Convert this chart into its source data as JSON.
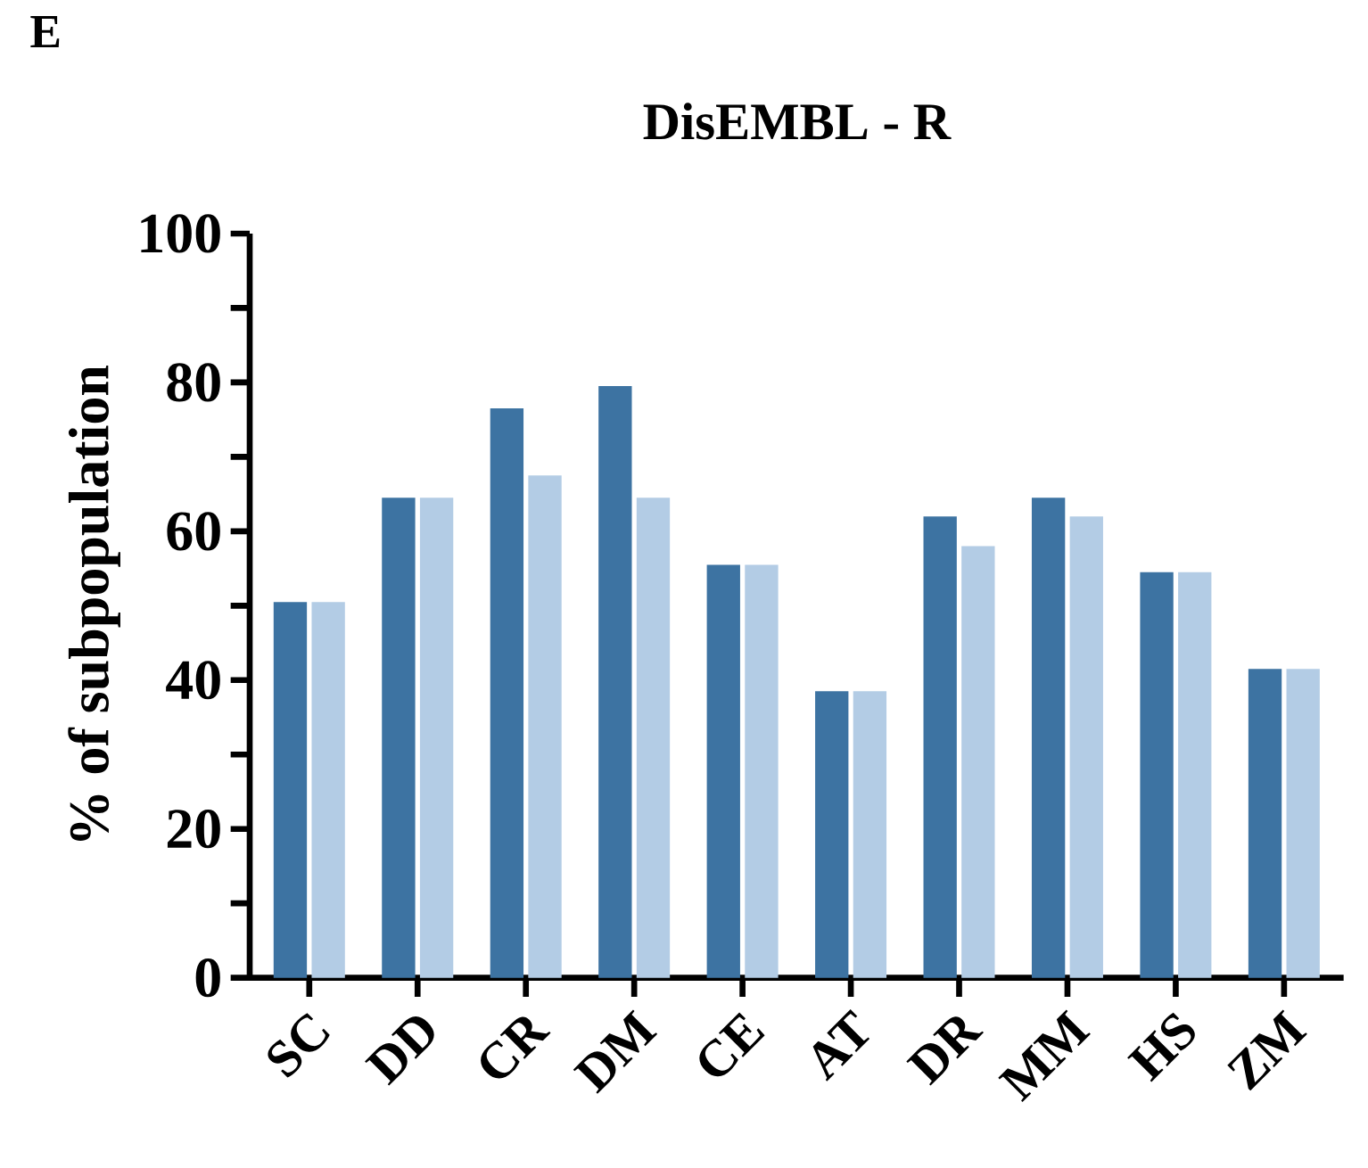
{
  "chart_data": {
    "type": "bar",
    "title": "DisEMBL - R",
    "ylabel": "% of subpopulation",
    "annotations": [
      "E"
    ],
    "categories": [
      "SC",
      "DD",
      "CR",
      "DM",
      "CE",
      "AT",
      "DR",
      "MM",
      "HS",
      "ZM"
    ],
    "series": [
      {
        "color": "#3d73a2",
        "values": [
          50.5,
          64.5,
          76.5,
          79.5,
          55.5,
          38.5,
          62,
          64.5,
          54.5,
          41.5
        ]
      },
      {
        "color": "#b3cce5",
        "values": [
          50.5,
          64.5,
          67.5,
          64.5,
          55.5,
          38.5,
          58,
          62,
          54.5,
          41.5
        ]
      }
    ],
    "ylim": [
      0,
      100
    ],
    "yticks": [
      0,
      {
        "value": 10,
        "label": null
      },
      20,
      {
        "value": 30,
        "label": null
      },
      40,
      {
        "value": 50,
        "label": null
      },
      60,
      {
        "value": 70,
        "label": null
      },
      80,
      {
        "value": 90,
        "label": null
      },
      100
    ],
    "grid": false
  }
}
